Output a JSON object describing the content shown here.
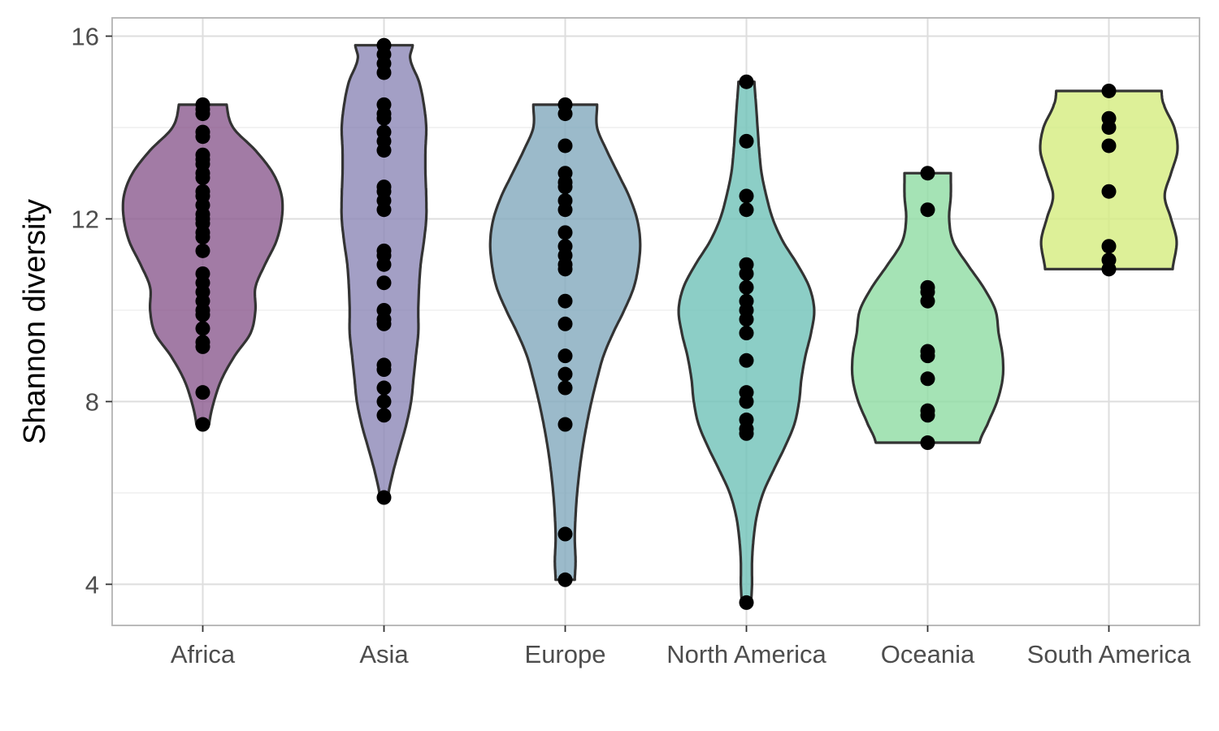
{
  "chart_data": {
    "type": "violin",
    "title": "",
    "xlabel": "",
    "ylabel": "Shannon diversity",
    "ylim": [
      3.1,
      16.4
    ],
    "yticks": [
      4,
      8,
      12,
      16
    ],
    "grid": true,
    "categories": [
      "Africa",
      "Asia",
      "Europe",
      "North America",
      "Oceania",
      "South America"
    ],
    "colors": {
      "Africa": "#8b5a8f",
      "Asia": "#8c87b6",
      "Europe": "#82a9bd",
      "North America": "#6fc2b8",
      "Oceania": "#8fdca2",
      "South America": "#d4ec7e"
    },
    "series": [
      {
        "category": "Africa",
        "points": [
          14.5,
          14.4,
          14.3,
          13.9,
          13.8,
          13.4,
          13.3,
          13.2,
          13.0,
          12.9,
          12.6,
          12.5,
          12.3,
          12.1,
          12.0,
          11.9,
          11.7,
          11.6,
          11.3,
          10.8,
          10.6,
          10.4,
          10.2,
          10.0,
          9.9,
          9.6,
          9.3,
          9.2,
          8.2,
          7.5
        ],
        "density": [
          [
            7.5,
            0.08
          ],
          [
            8.0,
            0.14
          ],
          [
            8.5,
            0.24
          ],
          [
            9.0,
            0.4
          ],
          [
            9.5,
            0.6
          ],
          [
            10.0,
            0.66
          ],
          [
            10.5,
            0.66
          ],
          [
            11.0,
            0.78
          ],
          [
            11.5,
            0.92
          ],
          [
            12.0,
            0.99
          ],
          [
            12.5,
            0.99
          ],
          [
            13.0,
            0.88
          ],
          [
            13.5,
            0.66
          ],
          [
            14.0,
            0.38
          ],
          [
            14.5,
            0.3
          ]
        ]
      },
      {
        "category": "Asia",
        "points": [
          15.8,
          15.6,
          15.4,
          15.2,
          14.5,
          14.3,
          14.2,
          13.9,
          13.7,
          13.5,
          12.7,
          12.6,
          12.4,
          12.2,
          11.3,
          11.2,
          11.0,
          10.6,
          10.0,
          9.8,
          9.7,
          8.8,
          8.7,
          8.3,
          8.0,
          7.7,
          5.9
        ],
        "density": [
          [
            5.9,
            0.05
          ],
          [
            6.5,
            0.12
          ],
          [
            7.0,
            0.2
          ],
          [
            7.5,
            0.28
          ],
          [
            8.0,
            0.34
          ],
          [
            8.5,
            0.37
          ],
          [
            9.0,
            0.4
          ],
          [
            9.5,
            0.43
          ],
          [
            10.0,
            0.43
          ],
          [
            10.5,
            0.44
          ],
          [
            11.0,
            0.46
          ],
          [
            11.5,
            0.5
          ],
          [
            12.0,
            0.53
          ],
          [
            12.5,
            0.53
          ],
          [
            13.0,
            0.52
          ],
          [
            13.5,
            0.52
          ],
          [
            14.0,
            0.53
          ],
          [
            14.5,
            0.5
          ],
          [
            15.0,
            0.44
          ],
          [
            15.5,
            0.33
          ],
          [
            15.8,
            0.36
          ]
        ]
      },
      {
        "category": "Europe",
        "points": [
          14.5,
          14.3,
          13.6,
          13.0,
          12.8,
          12.7,
          12.4,
          12.2,
          11.7,
          11.4,
          11.2,
          11.0,
          10.9,
          10.2,
          9.7,
          9.0,
          8.6,
          8.3,
          7.5,
          5.1,
          4.1
        ],
        "density": [
          [
            4.1,
            0.12
          ],
          [
            4.5,
            0.13
          ],
          [
            5.0,
            0.12
          ],
          [
            5.5,
            0.13
          ],
          [
            6.0,
            0.15
          ],
          [
            6.5,
            0.18
          ],
          [
            7.0,
            0.22
          ],
          [
            7.5,
            0.27
          ],
          [
            8.0,
            0.33
          ],
          [
            8.5,
            0.4
          ],
          [
            9.0,
            0.48
          ],
          [
            9.5,
            0.6
          ],
          [
            10.0,
            0.74
          ],
          [
            10.5,
            0.86
          ],
          [
            11.0,
            0.92
          ],
          [
            11.5,
            0.94
          ],
          [
            12.0,
            0.9
          ],
          [
            12.5,
            0.8
          ],
          [
            13.0,
            0.66
          ],
          [
            13.5,
            0.52
          ],
          [
            14.0,
            0.4
          ],
          [
            14.5,
            0.4
          ]
        ]
      },
      {
        "category": "North America",
        "points": [
          15.0,
          13.7,
          12.5,
          12.2,
          11.0,
          10.8,
          10.5,
          10.2,
          10.0,
          9.8,
          9.5,
          8.9,
          8.2,
          8.0,
          7.6,
          7.4,
          7.3,
          3.6
        ],
        "density": [
          [
            3.6,
            0.06
          ],
          [
            4.0,
            0.07
          ],
          [
            4.5,
            0.07
          ],
          [
            5.0,
            0.09
          ],
          [
            5.5,
            0.13
          ],
          [
            6.0,
            0.21
          ],
          [
            6.5,
            0.34
          ],
          [
            7.0,
            0.48
          ],
          [
            7.5,
            0.6
          ],
          [
            8.0,
            0.66
          ],
          [
            8.5,
            0.69
          ],
          [
            9.0,
            0.74
          ],
          [
            9.5,
            0.81
          ],
          [
            10.0,
            0.85
          ],
          [
            10.5,
            0.79
          ],
          [
            11.0,
            0.64
          ],
          [
            11.5,
            0.46
          ],
          [
            12.0,
            0.33
          ],
          [
            12.5,
            0.25
          ],
          [
            13.0,
            0.19
          ],
          [
            13.5,
            0.16
          ],
          [
            14.0,
            0.14
          ],
          [
            14.5,
            0.12
          ],
          [
            15.0,
            0.1
          ]
        ]
      },
      {
        "category": "Oceania",
        "points": [
          13.0,
          12.2,
          10.5,
          10.4,
          10.2,
          9.1,
          9.0,
          8.5,
          7.8,
          7.7,
          7.1
        ],
        "density": [
          [
            7.1,
            0.65
          ],
          [
            7.5,
            0.75
          ],
          [
            8.0,
            0.87
          ],
          [
            8.5,
            0.94
          ],
          [
            9.0,
            0.94
          ],
          [
            9.5,
            0.89
          ],
          [
            10.0,
            0.85
          ],
          [
            10.5,
            0.7
          ],
          [
            11.0,
            0.5
          ],
          [
            11.5,
            0.32
          ],
          [
            12.0,
            0.27
          ],
          [
            12.5,
            0.29
          ],
          [
            13.0,
            0.29
          ]
        ]
      },
      {
        "category": "South America",
        "points": [
          14.8,
          14.2,
          14.0,
          13.6,
          12.6,
          11.4,
          11.1,
          10.9
        ],
        "density": [
          [
            10.9,
            0.8
          ],
          [
            11.5,
            0.85
          ],
          [
            12.0,
            0.78
          ],
          [
            12.5,
            0.7
          ],
          [
            13.0,
            0.78
          ],
          [
            13.5,
            0.86
          ],
          [
            14.0,
            0.82
          ],
          [
            14.5,
            0.69
          ],
          [
            14.8,
            0.66
          ]
        ]
      }
    ]
  }
}
